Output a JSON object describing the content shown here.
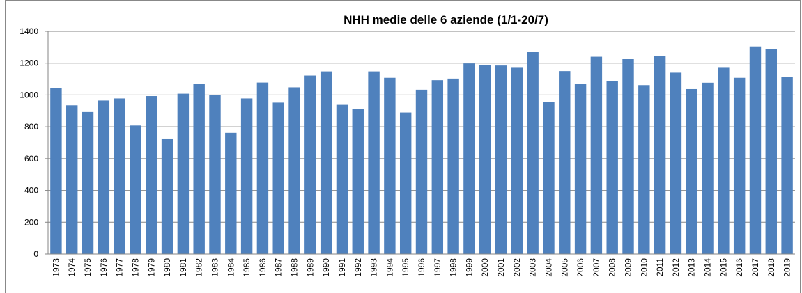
{
  "chart_data": {
    "type": "bar",
    "title": "NHH medie delle 6 aziende (1/1-20/7)",
    "categories": [
      "1973",
      "1974",
      "1975",
      "1976",
      "1977",
      "1978",
      "1979",
      "1980",
      "1981",
      "1982",
      "1983",
      "1984",
      "1985",
      "1986",
      "1987",
      "1988",
      "1989",
      "1990",
      "1991",
      "1992",
      "1993",
      "1994",
      "1995",
      "1996",
      "1997",
      "1998",
      "1999",
      "2000",
      "2001",
      "2002",
      "2003",
      "2004",
      "2005",
      "2006",
      "2007",
      "2008",
      "2009",
      "2010",
      "2011",
      "2012",
      "2013",
      "2014",
      "2015",
      "2016",
      "2017",
      "2018",
      "2019"
    ],
    "values": [
      1045,
      935,
      893,
      965,
      978,
      808,
      993,
      722,
      1008,
      1070,
      998,
      762,
      978,
      1078,
      952,
      1048,
      1122,
      1148,
      938,
      912,
      1148,
      1108,
      890,
      1033,
      1093,
      1103,
      1198,
      1190,
      1185,
      1175,
      1270,
      955,
      1150,
      1070,
      1240,
      1085,
      1225,
      1062,
      1243,
      1140,
      1037,
      1077,
      1175,
      1108,
      1305,
      1290,
      1112
    ],
    "color": "#4f81bd",
    "ylim": [
      0,
      1400
    ],
    "yticks": [
      0,
      200,
      400,
      600,
      800,
      1000,
      1200,
      1400
    ],
    "grid": true
  }
}
